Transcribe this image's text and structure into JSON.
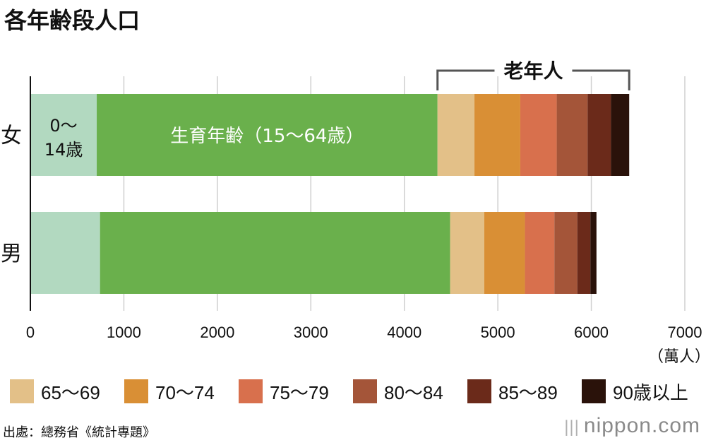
{
  "title": "各年齢段人口",
  "chart_data": {
    "type": "bar",
    "orientation": "horizontal",
    "stacked": true,
    "title": "各年齢段人口",
    "categories": [
      "女",
      "男"
    ],
    "series": [
      {
        "name": "0〜14歳",
        "color": "#b2d9c0",
        "values": [
          710,
          745
        ]
      },
      {
        "name": "生育年齢（15〜64歳）",
        "color": "#6ab04c",
        "values": [
          3645,
          3745
        ]
      },
      {
        "name": "65〜69",
        "color": "#e3c088",
        "values": [
          395,
          365
        ]
      },
      {
        "name": "70〜74",
        "color": "#d98f35",
        "values": [
          490,
          435
        ]
      },
      {
        "name": "75〜79",
        "color": "#d8704d",
        "values": [
          390,
          315
        ]
      },
      {
        "name": "80〜84",
        "color": "#a45539",
        "values": [
          330,
          245
        ]
      },
      {
        "name": "85〜89",
        "color": "#6b2a1a",
        "values": [
          250,
          140
        ]
      },
      {
        "name": "90歳以上",
        "color": "#2a120a",
        "values": [
          195,
          65
        ]
      }
    ],
    "xlim": [
      0,
      7000
    ],
    "xticks": [
      "0",
      "1000",
      "2000",
      "3000",
      "4000",
      "5000",
      "6000",
      "7000"
    ],
    "xticks_values": [
      0,
      1000,
      2000,
      3000,
      4000,
      5000,
      6000,
      7000
    ],
    "xlabel": "（萬人）",
    "ylabel": "",
    "grid": true,
    "bar_labels": {
      "young": [
        "0〜",
        "14歳"
      ],
      "working": "生育年齢（15〜64歳）"
    },
    "bracket_label": "老年人",
    "bracket_range": [
      4355,
      6405
    ]
  },
  "legend": [
    {
      "label": "65〜69",
      "color": "#e3c088"
    },
    {
      "label": "70〜74",
      "color": "#d98f35"
    },
    {
      "label": "75〜79",
      "color": "#d8704d"
    },
    {
      "label": "80〜84",
      "color": "#a45539"
    },
    {
      "label": "85〜89",
      "color": "#6b2a1a"
    },
    {
      "label": "90歳以上",
      "color": "#2a120a"
    }
  ],
  "source": "出處：總務省《統計專題》",
  "brand": "nippon.com",
  "brand_bars": "|||"
}
